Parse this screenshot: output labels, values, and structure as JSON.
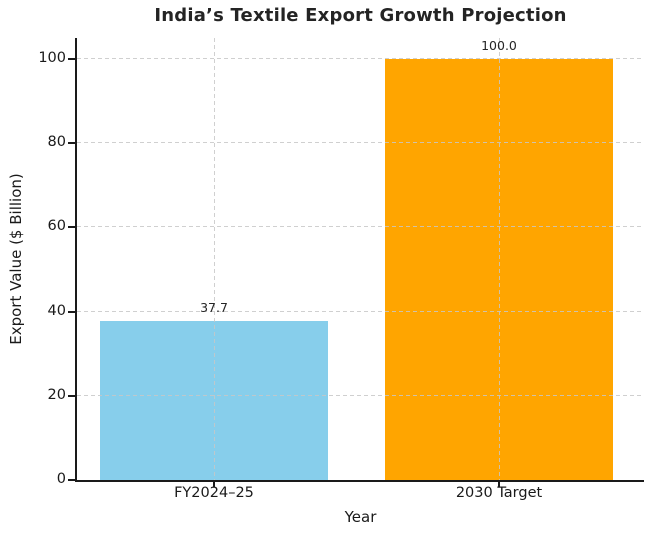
{
  "chart_data": {
    "type": "bar",
    "title": "India’s Textile Export Growth Projection",
    "categories": [
      "FY2024–25",
      "2030 Target"
    ],
    "values": [
      37.7,
      100.0
    ],
    "bar_labels": [
      "37.7",
      "100.0"
    ],
    "bar_colors": [
      "#87CEEB",
      "#FFA500"
    ],
    "xlabel": "Year",
    "ylabel": "Export Value ($ Billion)",
    "ylim": [
      0,
      105
    ],
    "yticks": [
      0,
      20,
      40,
      60,
      80,
      100
    ],
    "grid": "dashed gray, horizontal at yticks and vertical at bar centers, drawn above bars",
    "legend": "none",
    "colors": {
      "text": "#1a1a1a",
      "title": "#242424",
      "grid": "#c7c7c7",
      "spine": "#1a1a1a",
      "background": "#ffffff"
    }
  }
}
